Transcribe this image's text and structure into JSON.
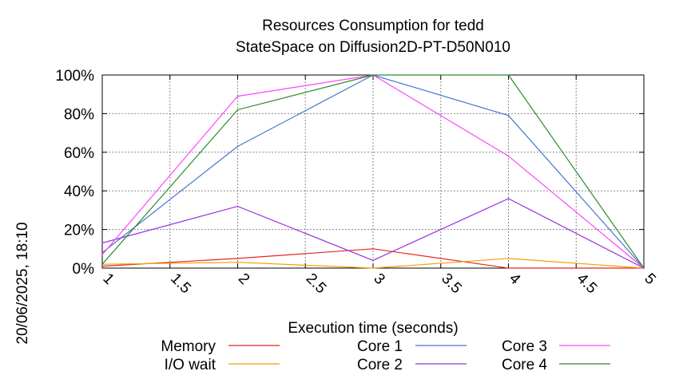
{
  "chart_data": {
    "type": "line",
    "title": "Resources Consumption for tedd",
    "subtitle": "StateSpace on Diffusion2D-PT-D50N010",
    "timestamp": "20/06/2025, 18:10",
    "xlabel": "Execution time (seconds)",
    "ylabel": "",
    "xlim": [
      1,
      5
    ],
    "ylim": [
      0,
      100
    ],
    "grid": true,
    "legend_position": "bottom",
    "x_ticks": [
      "1",
      "1.5",
      "2",
      "2.5",
      "3",
      "3.5",
      "4",
      "4.5",
      "5"
    ],
    "y_ticks": [
      "0%",
      "20%",
      "40%",
      "60%",
      "80%",
      "100%"
    ],
    "x": [
      1,
      2,
      3,
      4,
      5
    ],
    "series": [
      {
        "name": "Memory",
        "color": "#e8251d",
        "values": [
          1,
          5,
          10,
          0,
          0
        ]
      },
      {
        "name": "I/O wait",
        "color": "#f0a000",
        "values": [
          2,
          3,
          0,
          5,
          0
        ]
      },
      {
        "name": "Core 1",
        "color": "#4477cc",
        "values": [
          8,
          63,
          100,
          79,
          0
        ]
      },
      {
        "name": "Core 2",
        "color": "#9b30e0",
        "values": [
          13,
          32,
          4,
          36,
          0
        ]
      },
      {
        "name": "Core 3",
        "color": "#ff44ff",
        "values": [
          7,
          89,
          100,
          58,
          0
        ]
      },
      {
        "name": "Core 4",
        "color": "#2e8b2e",
        "values": [
          2,
          82,
          100,
          100,
          0
        ]
      }
    ]
  }
}
